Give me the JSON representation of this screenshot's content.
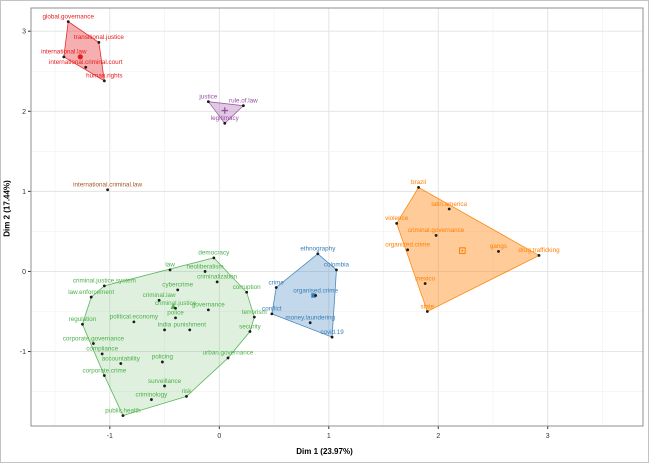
{
  "chart_data": {
    "type": "scatter",
    "title": "",
    "xlabel": "Dim 1 (23.97%)",
    "ylabel": "Dim 2 (17.44%)",
    "xlim": [
      -1.72,
      3.87
    ],
    "ylim": [
      -1.93,
      3.29
    ],
    "xticks": [
      -1,
      0,
      1,
      2,
      3
    ],
    "yticks": [
      -1,
      0,
      1,
      2,
      3
    ],
    "grid": true,
    "legend": "none",
    "point_color": "#1a1a1a",
    "clusters": [
      {
        "name": "red",
        "color": "#E41A1C",
        "fill_opacity": 0.35,
        "centroid": {
          "x": -1.27,
          "y": 2.68,
          "shape": "circle"
        },
        "points": [
          {
            "label": "global.governance",
            "x": -1.38,
            "y": 3.12
          },
          {
            "label": "transitional.justice",
            "x": -1.1,
            "y": 2.86
          },
          {
            "label": "international.law",
            "x": -1.42,
            "y": 2.68
          },
          {
            "label": "international.criminal.court",
            "x": -1.22,
            "y": 2.55
          },
          {
            "label": "human.rights",
            "x": -1.05,
            "y": 2.38
          }
        ]
      },
      {
        "name": "purple",
        "color": "#984EA3",
        "fill_opacity": 0.3,
        "centroid": {
          "x": 0.05,
          "y": 2.01,
          "shape": "plus"
        },
        "points": [
          {
            "label": "justice",
            "x": -0.1,
            "y": 2.12
          },
          {
            "label": "rule.of.law",
            "x": 0.22,
            "y": 2.07
          },
          {
            "label": "legitimacy",
            "x": 0.05,
            "y": 1.85
          }
        ]
      },
      {
        "name": "brown",
        "color": "#A65628",
        "fill_opacity": 0.3,
        "centroid": null,
        "points": [
          {
            "label": "international.criminal.law",
            "x": -1.02,
            "y": 1.02
          }
        ]
      },
      {
        "name": "green",
        "color": "#4DAF4A",
        "fill_opacity": 0.18,
        "centroid": {
          "x": -0.42,
          "y": -0.44,
          "shape": "triangle"
        },
        "points": [
          {
            "label": "democracy",
            "x": -0.05,
            "y": 0.17
          },
          {
            "label": "neoliberalism",
            "x": -0.13,
            "y": 0.0
          },
          {
            "label": "law",
            "x": -0.45,
            "y": 0.02
          },
          {
            "label": "criminalization",
            "x": -0.02,
            "y": -0.13
          },
          {
            "label": "criminal.justice.system",
            "x": -1.05,
            "y": -0.18
          },
          {
            "label": "cybercrime",
            "x": -0.38,
            "y": -0.23
          },
          {
            "label": "corruption",
            "x": 0.25,
            "y": -0.26
          },
          {
            "label": "law.enforcement",
            "x": -1.17,
            "y": -0.32
          },
          {
            "label": "criminal.law",
            "x": -0.55,
            "y": -0.36
          },
          {
            "label": "criminal.justice",
            "x": -0.4,
            "y": -0.46
          },
          {
            "label": "governance",
            "x": -0.1,
            "y": -0.48
          },
          {
            "label": "police",
            "x": -0.4,
            "y": -0.58
          },
          {
            "label": "terrorism",
            "x": 0.32,
            "y": -0.57
          },
          {
            "label": "political.economy",
            "x": -0.78,
            "y": -0.63
          },
          {
            "label": "regulation",
            "x": -1.25,
            "y": -0.66
          },
          {
            "label": "india",
            "x": -0.5,
            "y": -0.73
          },
          {
            "label": "punishment",
            "x": -0.27,
            "y": -0.73
          },
          {
            "label": "security",
            "x": 0.28,
            "y": -0.75
          },
          {
            "label": "corporate.governance",
            "x": -1.15,
            "y": -0.9
          },
          {
            "label": "compliance",
            "x": -1.07,
            "y": -1.03
          },
          {
            "label": "urban.governance",
            "x": 0.08,
            "y": -1.08
          },
          {
            "label": "accountability",
            "x": -0.9,
            "y": -1.15
          },
          {
            "label": "policing",
            "x": -0.52,
            "y": -1.13
          },
          {
            "label": "corporate.crime",
            "x": -1.05,
            "y": -1.3
          },
          {
            "label": "surveillance",
            "x": -0.5,
            "y": -1.43
          },
          {
            "label": "risk",
            "x": -0.3,
            "y": -1.56
          },
          {
            "label": "criminology",
            "x": -0.62,
            "y": -1.6
          },
          {
            "label": "public.health",
            "x": -0.88,
            "y": -1.8
          }
        ]
      },
      {
        "name": "blue",
        "color": "#377EB8",
        "fill_opacity": 0.3,
        "centroid": {
          "x": 0.86,
          "y": -0.3,
          "shape": "square"
        },
        "points": [
          {
            "label": "ethnography",
            "x": 0.9,
            "y": 0.22
          },
          {
            "label": "colombia",
            "x": 1.07,
            "y": 0.02
          },
          {
            "label": "crime",
            "x": 0.52,
            "y": -0.2
          },
          {
            "label": "organised.crime",
            "x": 0.88,
            "y": -0.3
          },
          {
            "label": "conflict",
            "x": 0.48,
            "y": -0.53
          },
          {
            "label": "money.laundering",
            "x": 0.83,
            "y": -0.64
          },
          {
            "label": "covid.19",
            "x": 1.03,
            "y": -0.82
          }
        ]
      },
      {
        "name": "orange",
        "color": "#FF7F00",
        "fill_opacity": 0.4,
        "centroid": {
          "x": 2.22,
          "y": 0.26,
          "shape": "square-dot"
        },
        "points": [
          {
            "label": "brazil",
            "x": 1.82,
            "y": 1.05
          },
          {
            "label": "latin.america",
            "x": 2.1,
            "y": 0.78
          },
          {
            "label": "violence",
            "x": 1.62,
            "y": 0.6
          },
          {
            "label": "criminal.governance",
            "x": 1.98,
            "y": 0.45
          },
          {
            "label": "organized.crime",
            "x": 1.72,
            "y": 0.27
          },
          {
            "label": "gangs",
            "x": 2.55,
            "y": 0.25
          },
          {
            "label": "drug.trafficking",
            "x": 2.92,
            "y": 0.2
          },
          {
            "label": "mexico",
            "x": 1.88,
            "y": -0.15
          },
          {
            "label": "state",
            "x": 1.9,
            "y": -0.5
          }
        ]
      }
    ]
  }
}
